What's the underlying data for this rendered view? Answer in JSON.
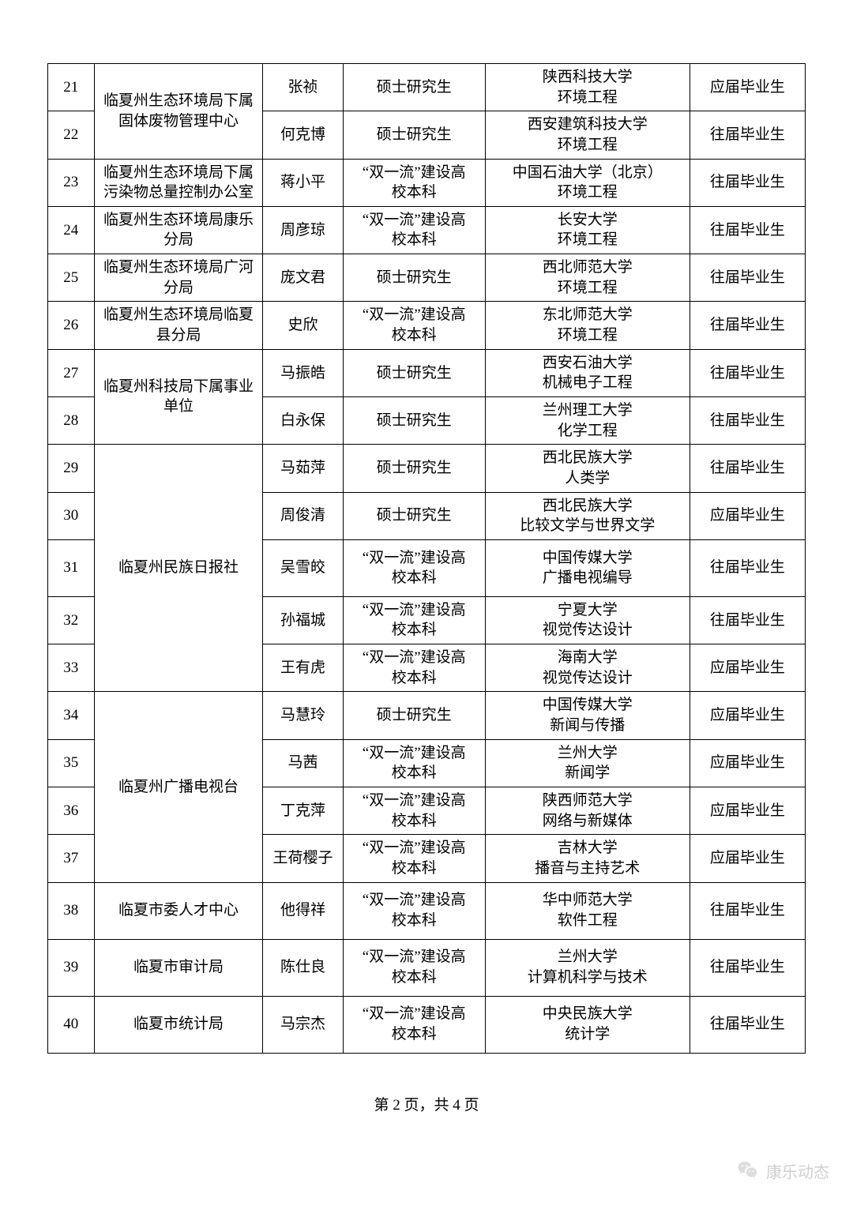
{
  "table": {
    "colWidths": {
      "idx": 52,
      "dept": 190,
      "name": 90,
      "edu": 160,
      "school": 230,
      "status": 130
    },
    "groups": [
      {
        "dept": "临夏州生态环境局下属\n固体废物管理中心",
        "rows": [
          {
            "idx": "21",
            "name": "张祯",
            "edu": "硕士研究生",
            "school": "陕西科技大学\n环境工程",
            "status": "应届毕业生"
          },
          {
            "idx": "22",
            "name": "何克博",
            "edu": "硕士研究生",
            "school": "西安建筑科技大学\n环境工程",
            "status": "往届毕业生"
          }
        ]
      },
      {
        "dept": "临夏州生态环境局下属\n污染物总量控制办公室",
        "rows": [
          {
            "idx": "23",
            "name": "蒋小平",
            "edu": "“双一流”建设高\n校本科",
            "school": "中国石油大学（北京）\n环境工程",
            "status": "往届毕业生"
          }
        ]
      },
      {
        "dept": "临夏州生态环境局康乐\n分局",
        "rows": [
          {
            "idx": "24",
            "name": "周彦琼",
            "edu": "“双一流”建设高\n校本科",
            "school": "长安大学\n环境工程",
            "status": "往届毕业生"
          }
        ]
      },
      {
        "dept": "临夏州生态环境局广河\n分局",
        "rows": [
          {
            "idx": "25",
            "name": "庞文君",
            "edu": "硕士研究生",
            "school": "西北师范大学\n环境工程",
            "status": "往届毕业生"
          }
        ]
      },
      {
        "dept": "临夏州生态环境局临夏\n县分局",
        "rows": [
          {
            "idx": "26",
            "name": "史欣",
            "edu": "“双一流”建设高\n校本科",
            "school": "东北师范大学\n环境工程",
            "status": "往届毕业生"
          }
        ]
      },
      {
        "dept": "临夏州科技局下属事业\n单位",
        "rows": [
          {
            "idx": "27",
            "name": "马振皓",
            "edu": "硕士研究生",
            "school": "西安石油大学\n机械电子工程",
            "status": "往届毕业生"
          },
          {
            "idx": "28",
            "name": "白永保",
            "edu": "硕士研究生",
            "school": "兰州理工大学\n化学工程",
            "status": "往届毕业生"
          }
        ]
      },
      {
        "dept": "临夏州民族日报社",
        "rows": [
          {
            "idx": "29",
            "name": "马茹萍",
            "edu": "硕士研究生",
            "school": "西北民族大学\n人类学",
            "status": "往届毕业生"
          },
          {
            "idx": "30",
            "name": "周俊清",
            "edu": "硕士研究生",
            "school": "西北民族大学\n比较文学与世界文学",
            "status": "应届毕业生"
          },
          {
            "idx": "31",
            "name": "吴雪皎",
            "edu": "“双一流”建设高\n校本科",
            "school": "中国传媒大学\n广播电视编导",
            "status": "往届毕业生"
          },
          {
            "idx": "32",
            "name": "孙福城",
            "edu": "“双一流”建设高\n校本科",
            "school": "宁夏大学\n视觉传达设计",
            "status": "往届毕业生"
          },
          {
            "idx": "33",
            "name": "王有虎",
            "edu": "“双一流”建设高\n校本科",
            "school": "海南大学\n视觉传达设计",
            "status": "应届毕业生"
          }
        ]
      },
      {
        "dept": "临夏州广播电视台",
        "rows": [
          {
            "idx": "34",
            "name": "马慧玲",
            "edu": "硕士研究生",
            "school": "中国传媒大学\n新闻与传播",
            "status": "应届毕业生"
          },
          {
            "idx": "35",
            "name": "马茜",
            "edu": "“双一流”建设高\n校本科",
            "school": "兰州大学\n新闻学",
            "status": "应届毕业生"
          },
          {
            "idx": "36",
            "name": "丁克萍",
            "edu": "“双一流”建设高\n校本科",
            "school": "陕西师范大学\n网络与新媒体",
            "status": "应届毕业生"
          },
          {
            "idx": "37",
            "name": "王荷樱子",
            "edu": "“双一流”建设高\n校本科",
            "school": "吉林大学\n播音与主持艺术",
            "status": "应届毕业生"
          }
        ]
      },
      {
        "dept": "临夏市委人才中心",
        "rows": [
          {
            "idx": "38",
            "name": "他得祥",
            "edu": "“双一流”建设高\n校本科",
            "school": "华中师范大学\n软件工程",
            "status": "往届毕业生"
          }
        ]
      },
      {
        "dept": "临夏市审计局",
        "rows": [
          {
            "idx": "39",
            "name": "陈仕良",
            "edu": "“双一流”建设高\n校本科",
            "school": "兰州大学\n计算机科学与技术",
            "status": "往届毕业生"
          }
        ]
      },
      {
        "dept": "临夏市统计局",
        "rows": [
          {
            "idx": "40",
            "name": "马宗杰",
            "edu": "“双一流”建设高\n校本科",
            "school": "中央民族大学\n统计学",
            "status": "往届毕业生"
          }
        ]
      }
    ]
  },
  "footer": {
    "text": "第 2 页，共 4 页"
  },
  "watermark": {
    "text": "康乐动态"
  },
  "rowHeights": {
    "default": 54,
    "tall": 72
  },
  "tallRowIndexes": [
    "31",
    "38",
    "39",
    "40"
  ]
}
